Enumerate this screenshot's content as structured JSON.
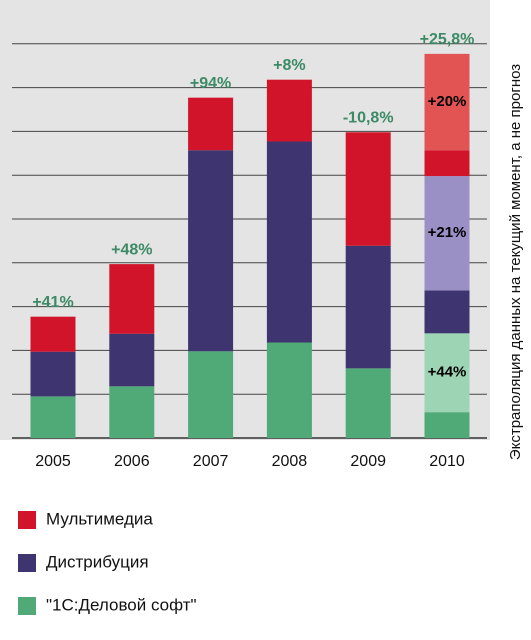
{
  "chart_data": {
    "type": "stacked_bar",
    "categories": [
      "2005",
      "2006",
      "2007",
      "2008",
      "2009",
      "2010"
    ],
    "series": [
      {
        "name": "\"1С:Деловой софт\"",
        "color": "#4faa77",
        "extrapolation_color": "#9dd5b4",
        "values": [
          0.95,
          1.18,
          1.98,
          2.18,
          1.59,
          0.59
        ],
        "extrapolation": [
          null,
          null,
          null,
          null,
          null,
          1.8
        ],
        "extrapolation_labels": [
          null,
          null,
          null,
          null,
          null,
          "+44%"
        ]
      },
      {
        "name": "Дистрибуция",
        "color": "#3e3470",
        "extrapolation_color": "#9b90c6",
        "values": [
          1.02,
          1.2,
          4.59,
          4.59,
          2.8,
          0.98
        ],
        "extrapolation": [
          null,
          null,
          null,
          null,
          null,
          2.61
        ],
        "extrapolation_labels": [
          null,
          null,
          null,
          null,
          null,
          "+21%"
        ]
      },
      {
        "name": "Мультимедиа",
        "color": "#d2142a",
        "extrapolation_color": "#e25454",
        "values": [
          0.8,
          1.59,
          1.2,
          1.41,
          2.59,
          0.59
        ],
        "extrapolation": [
          null,
          null,
          null,
          null,
          null,
          2.2
        ],
        "extrapolation_labels": [
          null,
          null,
          null,
          null,
          null,
          "+20%"
        ]
      }
    ],
    "annotations": [
      "+41%",
      "+48%",
      "+94%",
      "+8%",
      "-10,8%",
      "+25,8%"
    ],
    "side_note": "Экстраполяция данных на текущий момент, а не прогноз",
    "ylim": [
      0,
      10
    ],
    "yticks": [
      1,
      2,
      3,
      4,
      5,
      6,
      7,
      8,
      9
    ],
    "grid": true
  }
}
